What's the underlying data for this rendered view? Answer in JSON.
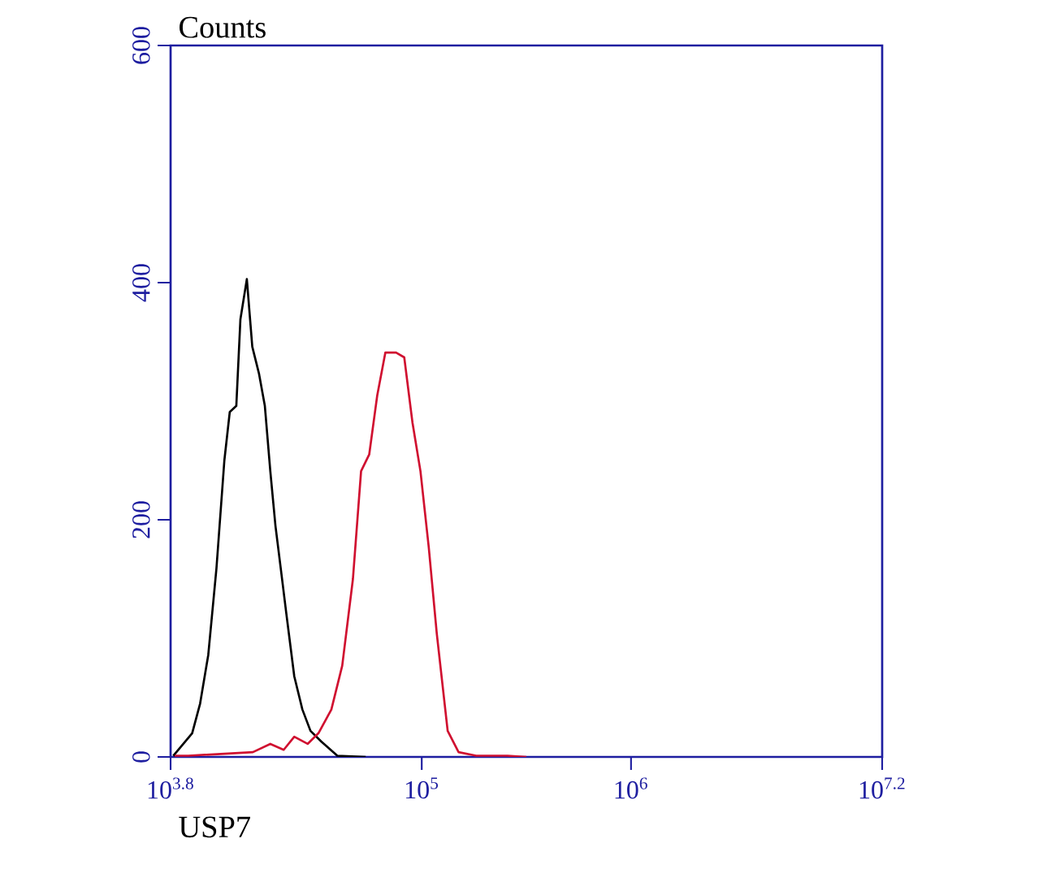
{
  "chart_data": {
    "type": "line",
    "xlabel": "USP7",
    "ylabel": "Counts",
    "log": "x",
    "xlim": [
      6309.57,
      15848932
    ],
    "xticks": [
      {
        "value": 6309.57,
        "label": "10$^{3.8}$"
      },
      {
        "value": 100000,
        "label": "10$^{5}$"
      },
      {
        "value": 1000000,
        "label": "10$^{6}$"
      },
      {
        "value": 15848932,
        "label": "10$^{7.2}$"
      }
    ],
    "ylim": [
      0,
      600
    ],
    "yticks": [
      0,
      200,
      400,
      600
    ],
    "grid": false,
    "marker": "none",
    "line_style": "solid",
    "series": [
      {
        "color": "#000000",
        "x": [
          6500,
          8000,
          8730,
          9550,
          10450,
          11400,
          12100,
          13000,
          13600,
          14600,
          15500,
          16700,
          17800,
          18900,
          20000,
          21200,
          22500,
          24600,
          26900,
          29400,
          33100,
          39500,
          54000
        ],
        "values": [
          1,
          20,
          45,
          86,
          159,
          250,
          291,
          296,
          369,
          403,
          346,
          323,
          296,
          241,
          195,
          159,
          122,
          68,
          40,
          22,
          13,
          1,
          0
        ]
      },
      {
        "color": "#d01030",
        "x": [
          6600,
          7670,
          15600,
          18900,
          21900,
          24600,
          28500,
          32100,
          37000,
          41700,
          46900,
          51300,
          56100,
          61300,
          67000,
          75400,
          82500,
          90300,
          98600,
          108000,
          118000,
          133000,
          150000,
          182000,
          257000,
          316000
        ],
        "values": [
          1,
          1,
          4,
          11,
          6,
          17,
          11,
          20,
          40,
          77,
          150,
          241,
          255,
          305,
          341,
          341,
          337,
          282,
          241,
          177,
          104,
          22,
          4,
          1,
          1,
          0
        ]
      }
    ]
  }
}
